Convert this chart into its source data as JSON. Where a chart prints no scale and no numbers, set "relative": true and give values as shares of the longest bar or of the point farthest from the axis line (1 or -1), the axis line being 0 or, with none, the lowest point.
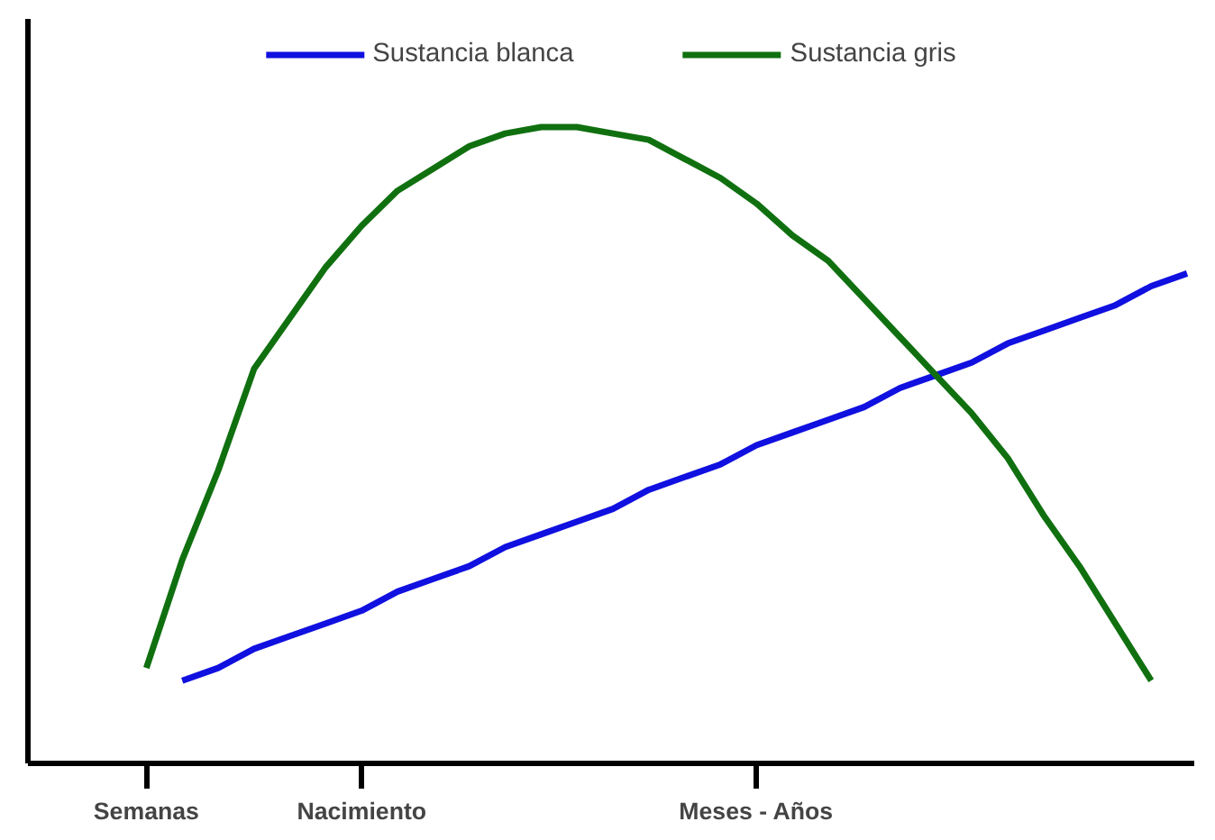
{
  "chart_data": {
    "type": "line",
    "relative": true,
    "legend": "top",
    "marker": "none",
    "line_style": "solid",
    "categories": [
      null,
      null,
      null,
      "Semanas",
      null,
      null,
      null,
      null,
      null,
      "Nacimiento",
      null,
      null,
      null,
      null,
      null,
      null,
      null,
      null,
      null,
      null,
      "Meses - Años",
      null,
      null,
      null,
      null,
      null,
      null,
      null,
      null,
      null,
      null,
      null,
      null
    ],
    "series": [
      {
        "name": "Sustancia blanca",
        "color": "#1010e0",
        "values": [
          null,
          null,
          null,
          null,
          0.13,
          0.15,
          0.18,
          0.2,
          0.22,
          0.24,
          0.27,
          0.29,
          0.31,
          0.34,
          0.36,
          0.38,
          0.4,
          0.43,
          0.45,
          0.47,
          0.5,
          0.52,
          0.54,
          0.56,
          0.59,
          0.61,
          0.63,
          0.66,
          0.68,
          0.7,
          0.72,
          0.75,
          0.77
        ]
      },
      {
        "name": "Sustancia gris",
        "color": "#107010",
        "values": [
          null,
          null,
          null,
          0.15,
          0.32,
          0.46,
          0.62,
          0.7,
          0.78,
          0.845,
          0.9,
          0.935,
          0.97,
          0.99,
          1.0,
          1.0,
          0.99,
          0.98,
          0.95,
          0.92,
          0.88,
          0.83,
          0.79,
          0.73,
          0.67,
          0.61,
          0.55,
          0.48,
          0.39,
          0.31,
          0.22,
          0.13,
          null
        ]
      }
    ]
  }
}
